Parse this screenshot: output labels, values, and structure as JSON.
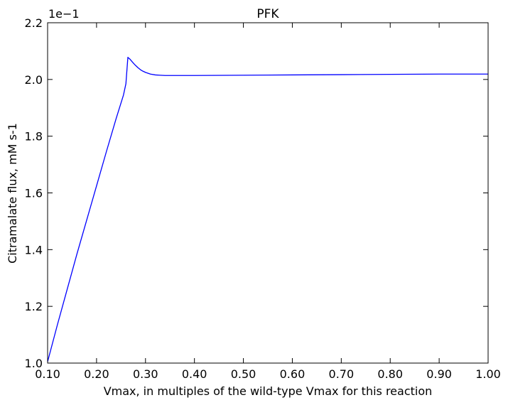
{
  "chart_data": {
    "type": "line",
    "title": "PFK",
    "xlabel": "Vmax, in multiples of the wild-type Vmax for this reaction",
    "ylabel": "Citramalate flux, mM s-1",
    "offset_text": "1e−1",
    "xlim": [
      0.1,
      1.0
    ],
    "ylim": [
      0.1,
      0.22
    ],
    "xticks": [
      0.1,
      0.2,
      0.3,
      0.4,
      0.5,
      0.6,
      0.7,
      0.8,
      0.9,
      1.0
    ],
    "xtick_labels": [
      "0.10",
      "0.20",
      "0.30",
      "0.40",
      "0.50",
      "0.60",
      "0.70",
      "0.80",
      "0.90",
      "1.00"
    ],
    "yticks": [
      0.1,
      0.12,
      0.14,
      0.16,
      0.18,
      0.2,
      0.22
    ],
    "ytick_labels": [
      "1.0",
      "1.2",
      "1.4",
      "1.6",
      "1.8",
      "2.0",
      "2.2"
    ],
    "grid": false,
    "series": [
      {
        "color": "#0000ff",
        "x": [
          0.1,
          0.12,
          0.14,
          0.16,
          0.18,
          0.2,
          0.22,
          0.24,
          0.255,
          0.26,
          0.264,
          0.268,
          0.272,
          0.276,
          0.28,
          0.285,
          0.29,
          0.295,
          0.3,
          0.31,
          0.32,
          0.33,
          0.34,
          0.35,
          0.4,
          0.5,
          0.6,
          0.7,
          0.8,
          0.9,
          1.0
        ],
        "y": [
          0.1005,
          0.1135,
          0.126,
          0.1385,
          0.1505,
          0.1625,
          0.1745,
          0.1862,
          0.1945,
          0.1985,
          0.2078,
          0.2072,
          0.2064,
          0.2056,
          0.2049,
          0.2041,
          0.2034,
          0.2029,
          0.2025,
          0.2019,
          0.2016,
          0.2015,
          0.2014,
          0.2014,
          0.2014,
          0.2015,
          0.2016,
          0.2017,
          0.2018,
          0.2019,
          0.2019
        ]
      }
    ]
  }
}
